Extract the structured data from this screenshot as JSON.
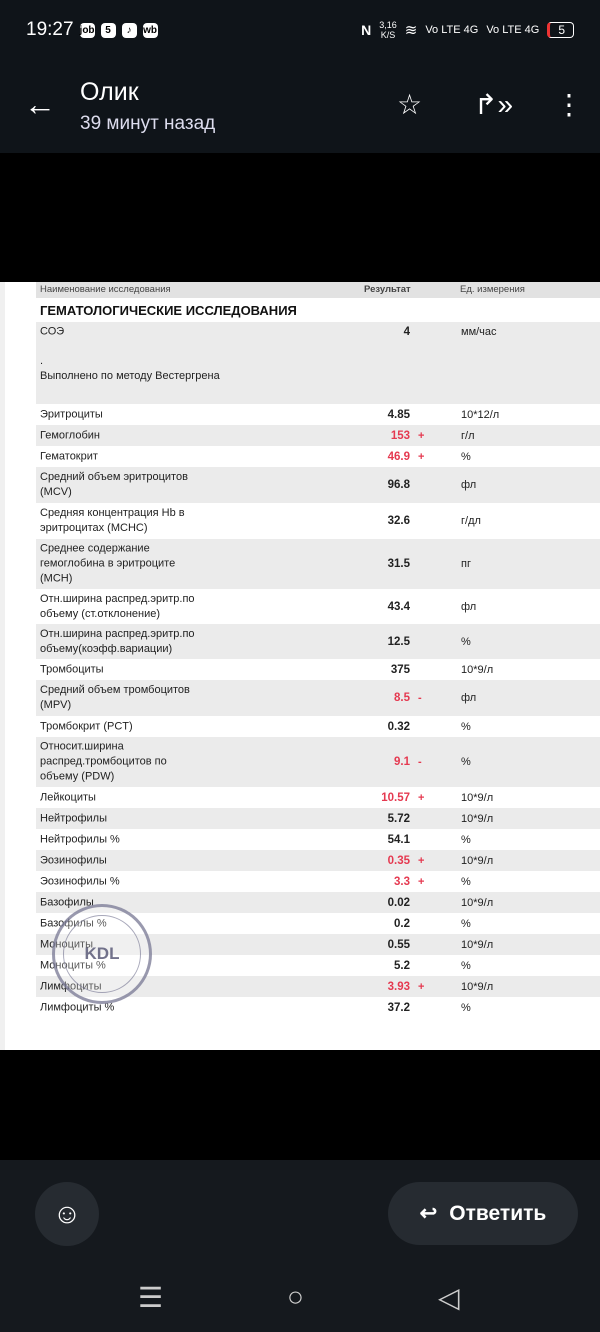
{
  "status_bar": {
    "time": "19:27",
    "app_icons": [
      "job",
      "5",
      "tiktok",
      "wb"
    ],
    "net_speed": "3,16\nK/S",
    "sim1": "Vo LTE 4G",
    "sim2": "Vo LTE 4G",
    "battery": "5"
  },
  "header": {
    "title": "Олик",
    "subtitle": "39 минут назад",
    "icons": [
      "back-arrow-icon",
      "star-icon",
      "forward-icon",
      "more-vert-icon"
    ]
  },
  "document": {
    "columns": {
      "name": "Наименование исследования",
      "result": "Результат",
      "unit": "Ед. измерения"
    },
    "section": "ГЕМАТОЛОГИЧЕСКИЕ ИССЛЕДОВАНИЯ",
    "stamp_text": "KDL",
    "rows": [
      {
        "name": "СОЭ",
        "value": "4",
        "flag": "",
        "unit": "мм/час"
      },
      {
        "name": ".\nВыполнено по методу Вестергрена",
        "value": "",
        "flag": "",
        "unit": ""
      },
      {
        "name": "Эритроциты",
        "value": "4.85",
        "flag": "",
        "unit": "10*12/л"
      },
      {
        "name": "Гемоглобин",
        "value": "153",
        "flag": "+",
        "unit": "г/л"
      },
      {
        "name": "Гематокрит",
        "value": "46.9",
        "flag": "+",
        "unit": "%"
      },
      {
        "name": "Средний объем эритроцитов\n(MCV)",
        "value": "96.8",
        "flag": "",
        "unit": "фл"
      },
      {
        "name": "Средняя концентрация Hb в\nэритроцитах (MCHC)",
        "value": "32.6",
        "flag": "",
        "unit": "г/дл"
      },
      {
        "name": "Среднее содержание\nгемоглобина в эритроците\n(MCH)",
        "value": "31.5",
        "flag": "",
        "unit": "пг"
      },
      {
        "name": "Отн.ширина распред.эритр.по\nобъему (ст.отклонение)",
        "value": "43.4",
        "flag": "",
        "unit": "фл"
      },
      {
        "name": "Отн.ширина распред.эритр.по\nобъему(коэфф.вариации)",
        "value": "12.5",
        "flag": "",
        "unit": "%"
      },
      {
        "name": "Тромбоциты",
        "value": "375",
        "flag": "",
        "unit": "10*9/л"
      },
      {
        "name": "Средний объем тромбоцитов\n(MPV)",
        "value": "8.5",
        "flag": "-",
        "unit": "фл"
      },
      {
        "name": "Тромбокрит (PCT)",
        "value": "0.32",
        "flag": "",
        "unit": "%"
      },
      {
        "name": "Относит.ширина\nраспред.тромбоцитов по\nобъему (PDW)",
        "value": "9.1",
        "flag": "-",
        "unit": "%"
      },
      {
        "name": "Лейкоциты",
        "value": "10.57",
        "flag": "+",
        "unit": "10*9/л"
      },
      {
        "name": "Нейтрофилы",
        "value": "5.72",
        "flag": "",
        "unit": "10*9/л"
      },
      {
        "name": "Нейтрофилы %",
        "value": "54.1",
        "flag": "",
        "unit": "%"
      },
      {
        "name": "Эозинофилы",
        "value": "0.35",
        "flag": "+",
        "unit": "10*9/л"
      },
      {
        "name": "Эозинофилы %",
        "value": "3.3",
        "flag": "+",
        "unit": "%"
      },
      {
        "name": "Базофилы",
        "value": "0.02",
        "flag": "",
        "unit": "10*9/л"
      },
      {
        "name": "Базофилы %",
        "value": "0.2",
        "flag": "",
        "unit": "%"
      },
      {
        "name": "Моноциты",
        "value": "0.55",
        "flag": "",
        "unit": "10*9/л"
      },
      {
        "name": "Моноциты %",
        "value": "5.2",
        "flag": "",
        "unit": "%"
      },
      {
        "name": "Лимфоциты",
        "value": "3.93",
        "flag": "+",
        "unit": "10*9/л"
      },
      {
        "name": "Лимфоциты %",
        "value": "37.2",
        "flag": "",
        "unit": "%"
      }
    ]
  },
  "colors": {
    "abnormal": "#e53950",
    "row_shade": "#ebebeb"
  },
  "bottom_bar": {
    "reply_label": "Ответить",
    "icons": [
      "emoji-add-icon",
      "reply-icon"
    ]
  },
  "nav_bar": {
    "icons": [
      "recents-icon",
      "home-icon",
      "back-icon"
    ]
  }
}
